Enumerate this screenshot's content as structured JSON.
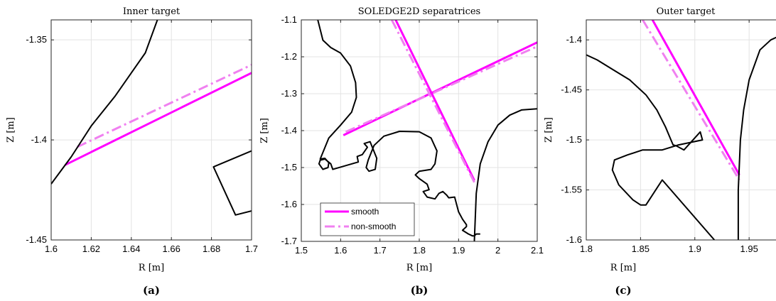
{
  "colors": {
    "smooth": "#ff00ff",
    "non_smooth": "#f080f0",
    "wall": "#000000",
    "grid": "#e3e3e3"
  },
  "chart_data": [
    {
      "type": "line",
      "caption": "(a)",
      "title": "Inner target",
      "xlabel": "R [m]",
      "ylabel": "Z [m]",
      "xlim": [
        1.6,
        1.7
      ],
      "ylim": [
        -1.45,
        -1.34
      ],
      "xticks": [
        1.6,
        1.62,
        1.64,
        1.66,
        1.68,
        1.7
      ],
      "xtick_labels": [
        "1.6",
        "1.62",
        "1.64",
        "1.66",
        "1.68",
        "1.7"
      ],
      "yticks": [
        -1.45,
        -1.4,
        -1.35
      ],
      "ytick_labels": [
        "-1.45",
        "-1.4",
        "-1.35"
      ],
      "grid": true,
      "series": [
        {
          "name": "smooth",
          "style": "solid",
          "color": "#ff00ff",
          "x": [
            1.607,
            1.7
          ],
          "y": [
            -1.4125,
            -1.3665
          ]
        },
        {
          "name": "non-smooth",
          "style": "dashdot",
          "color": "#f080f0",
          "x": [
            1.613,
            1.7
          ],
          "y": [
            -1.4035,
            -1.3625
          ]
        },
        {
          "name": "",
          "style": "solid",
          "color": "#000000",
          "x": [
            1.6,
            1.61,
            1.62,
            1.632,
            1.64,
            1.647,
            1.653
          ],
          "y": [
            -1.422,
            -1.4085,
            -1.393,
            -1.378,
            -1.3665,
            -1.3565,
            -1.34
          ]
        },
        {
          "name": "",
          "style": "solid",
          "color": "#000000",
          "x": [
            1.7,
            1.692,
            1.681,
            1.7
          ],
          "y": [
            -1.4355,
            -1.4375,
            -1.4135,
            -1.4055
          ]
        }
      ]
    },
    {
      "type": "line",
      "caption": "(b)",
      "title": "SOLEDGE2D separatrices",
      "xlabel": "R [m]",
      "ylabel": "Z [m]",
      "xlim": [
        1.5,
        2.1
      ],
      "ylim": [
        -1.7,
        -1.1
      ],
      "xticks": [
        1.5,
        1.6,
        1.7,
        1.8,
        1.9,
        2.0,
        2.1
      ],
      "xtick_labels": [
        "1.5",
        "1.6",
        "1.7",
        "1.8",
        "1.9",
        "2",
        "2.1"
      ],
      "yticks": [
        -1.7,
        -1.6,
        -1.5,
        -1.4,
        -1.3,
        -1.2,
        -1.1
      ],
      "ytick_labels": [
        "-1.7",
        "-1.6",
        "-1.5",
        "-1.4",
        "-1.3",
        "-1.2",
        "-1.1"
      ],
      "grid": true,
      "legend": {
        "position": "bottom-left",
        "entries": [
          {
            "label": "smooth",
            "style": "solid",
            "color": "#ff00ff"
          },
          {
            "label": "non-smooth",
            "style": "dashdot",
            "color": "#f080f0"
          }
        ]
      },
      "series": [
        {
          "name": "smooth",
          "style": "solid",
          "color": "#ff00ff",
          "x": [
            1.607,
            2.1
          ],
          "y": [
            -1.4125,
            -1.161
          ]
        },
        {
          "name": "smooth",
          "style": "solid",
          "color": "#ff00ff",
          "x": [
            1.74,
            1.94
          ],
          "y": [
            -1.1,
            -1.535
          ]
        },
        {
          "name": "non-smooth",
          "style": "dashdot",
          "color": "#f080f0",
          "x": [
            1.613,
            2.1
          ],
          "y": [
            -1.4035,
            -1.172
          ]
        },
        {
          "name": "non-smooth",
          "style": "dashdot",
          "color": "#f080f0",
          "x": [
            1.73,
            1.94
          ],
          "y": [
            -1.1,
            -1.54
          ]
        },
        {
          "name": "",
          "style": "solid",
          "color": "#000000",
          "x": [
            1.542,
            1.555,
            1.575,
            1.6,
            1.625,
            1.638,
            1.64,
            1.628,
            1.6,
            1.57,
            1.548,
            1.56,
            1.57,
            1.568,
            1.555,
            1.545,
            1.548,
            1.56,
            1.575,
            1.58,
            1.645,
            1.642,
            1.655,
            1.668,
            1.66,
            1.675,
            1.692,
            1.688,
            1.672,
            1.665,
            1.67,
            1.685,
            1.71,
            1.75,
            1.8,
            1.83,
            1.845,
            1.84,
            1.83,
            1.8,
            1.79,
            1.8,
            1.82,
            1.825,
            1.81,
            1.82,
            1.84,
            1.85,
            1.86,
            1.87,
            1.875,
            1.89,
            1.9,
            1.91,
            1.92,
            1.92,
            1.91,
            1.925,
            1.935,
            1.94,
            1.945,
            1.955,
            1.955
          ],
          "y": [
            -1.1,
            -1.155,
            -1.175,
            -1.19,
            -1.225,
            -1.27,
            -1.31,
            -1.35,
            -1.385,
            -1.42,
            -1.477,
            -1.475,
            -1.487,
            -1.5,
            -1.505,
            -1.49,
            -1.48,
            -1.477,
            -1.49,
            -1.505,
            -1.485,
            -1.47,
            -1.465,
            -1.445,
            -1.435,
            -1.43,
            -1.475,
            -1.505,
            -1.51,
            -1.5,
            -1.48,
            -1.44,
            -1.415,
            -1.402,
            -1.403,
            -1.42,
            -1.455,
            -1.49,
            -1.505,
            -1.51,
            -1.52,
            -1.53,
            -1.545,
            -1.56,
            -1.565,
            -1.58,
            -1.585,
            -1.57,
            -1.565,
            -1.575,
            -1.582,
            -1.58,
            -1.62,
            -1.64,
            -1.655,
            -1.66,
            -1.67,
            -1.68,
            -1.685,
            -1.685,
            -1.68,
            -1.68,
            -1.68
          ]
        },
        {
          "name": "",
          "style": "solid",
          "color": "#000000",
          "x": [
            1.94,
            1.945,
            1.955,
            1.975,
            2.0,
            2.03,
            2.06,
            2.1
          ],
          "y": [
            -1.7,
            -1.57,
            -1.49,
            -1.43,
            -1.385,
            -1.358,
            -1.344,
            -1.341
          ]
        }
      ]
    },
    {
      "type": "line",
      "caption": "(c)",
      "title": "Outer target",
      "xlabel": "R [m]",
      "ylabel": "Z [m]",
      "xlim": [
        1.8,
        1.98
      ],
      "ylim": [
        -1.6,
        -1.38
      ],
      "xticks": [
        1.8,
        1.85,
        1.9,
        1.95
      ],
      "xtick_labels": [
        "1.8",
        "1.85",
        "1.9",
        "1.95"
      ],
      "yticks": [
        -1.6,
        -1.55,
        -1.5,
        -1.45,
        -1.4
      ],
      "ytick_labels": [
        "-1.6",
        "-1.55",
        "-1.5",
        "-1.45",
        "-1.4"
      ],
      "grid": true,
      "series": [
        {
          "name": "smooth",
          "style": "solid",
          "color": "#ff00ff",
          "x": [
            1.861,
            1.941
          ],
          "y": [
            -1.38,
            -1.535
          ]
        },
        {
          "name": "non-smooth",
          "style": "dashdot",
          "color": "#f080f0",
          "x": [
            1.852,
            1.941
          ],
          "y": [
            -1.38,
            -1.54
          ]
        },
        {
          "name": "",
          "style": "solid",
          "color": "#000000",
          "x": [
            1.8,
            1.81,
            1.825,
            1.84,
            1.855,
            1.865,
            1.873,
            1.878,
            1.88,
            1.883,
            1.89,
            1.905,
            1.907,
            1.885,
            1.87,
            1.852,
            1.838,
            1.826,
            1.824,
            1.83,
            1.843,
            1.85,
            1.855,
            1.87,
            1.918
          ],
          "y": [
            -1.415,
            -1.42,
            -1.43,
            -1.44,
            -1.455,
            -1.47,
            -1.487,
            -1.5,
            -1.505,
            -1.506,
            -1.51,
            -1.492,
            -1.5,
            -1.505,
            -1.51,
            -1.51,
            -1.515,
            -1.52,
            -1.53,
            -1.545,
            -1.56,
            -1.565,
            -1.565,
            -1.54,
            -1.6
          ]
        },
        {
          "name": "",
          "style": "solid",
          "color": "#000000",
          "x": [
            1.94,
            1.94,
            1.942,
            1.945,
            1.95,
            1.96,
            1.97,
            1.98
          ],
          "y": [
            -1.6,
            -1.55,
            -1.5,
            -1.47,
            -1.44,
            -1.41,
            -1.4,
            -1.395
          ]
        }
      ]
    }
  ]
}
